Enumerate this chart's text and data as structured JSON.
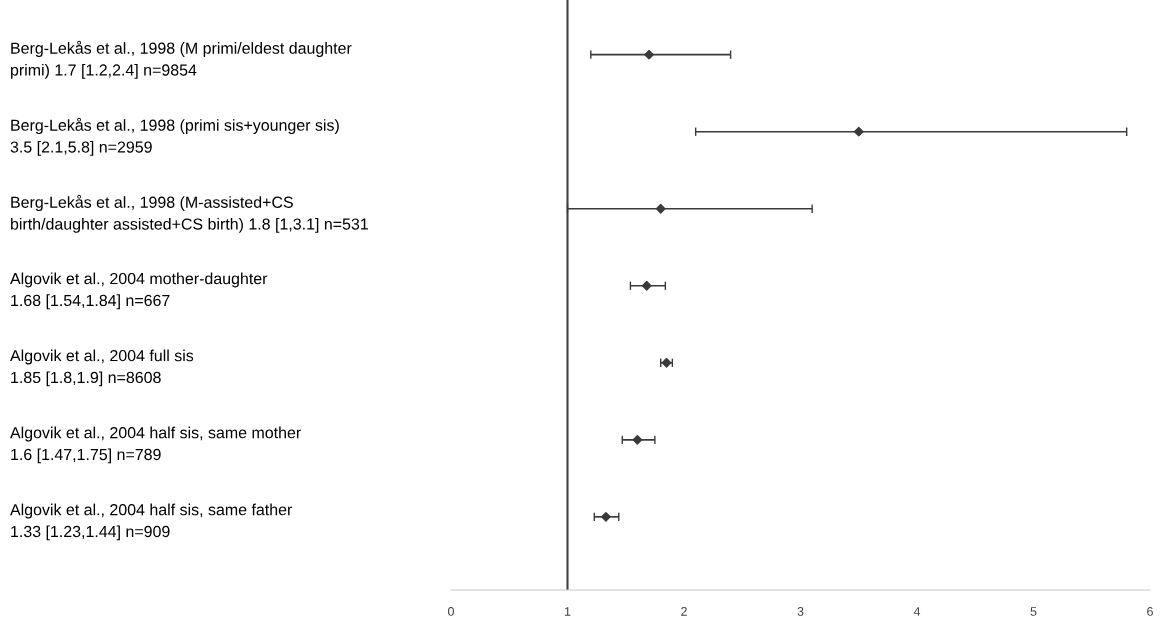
{
  "chart_data": {
    "type": "scatter",
    "orientation": "horizontal",
    "categories": [
      "Berg-Lekås et al., 1998 (M primi/eldest daughter\nprimi) 1.7 [1.2,2.4] n=9854",
      "Berg-Lekås et al., 1998 (primi sis+younger sis)\n3.5 [2.1,5.8] n=2959",
      "Berg-Lekås et al., 1998 (M-assisted+CS\nbirth/daughter assisted+CS birth) 1.8 [1,3.1] n=531",
      "Algovik et al., 2004 mother-daughter\n1.68 [1.54,1.84] n=667",
      "Algovik et al., 2004 full sis\n1.85 [1.8,1.9] n=8608",
      "Algovik et al., 2004 half sis, same mother\n1.6 [1.47,1.75] n=789",
      "Algovik et al., 2004 half sis, same father\n1.33 [1.23,1.44] n=909"
    ],
    "values": [
      1.7,
      3.5,
      1.8,
      1.68,
      1.85,
      1.6,
      1.33
    ],
    "errors": [
      [
        1.2,
        2.4
      ],
      [
        2.1,
        5.8
      ],
      [
        1,
        3.1
      ],
      [
        1.54,
        1.84
      ],
      [
        1.8,
        1.9
      ],
      [
        1.47,
        1.75
      ],
      [
        1.23,
        1.44
      ]
    ],
    "color": "#3a3a3a",
    "marker": "diamond",
    "xlim": [
      0,
      6
    ],
    "xticks": [
      0,
      1,
      2,
      3,
      4,
      5,
      6
    ],
    "ref_lines": [
      {
        "axis": "x",
        "value": 1,
        "color": "#404040"
      }
    ],
    "grid": false,
    "legend": false
  }
}
